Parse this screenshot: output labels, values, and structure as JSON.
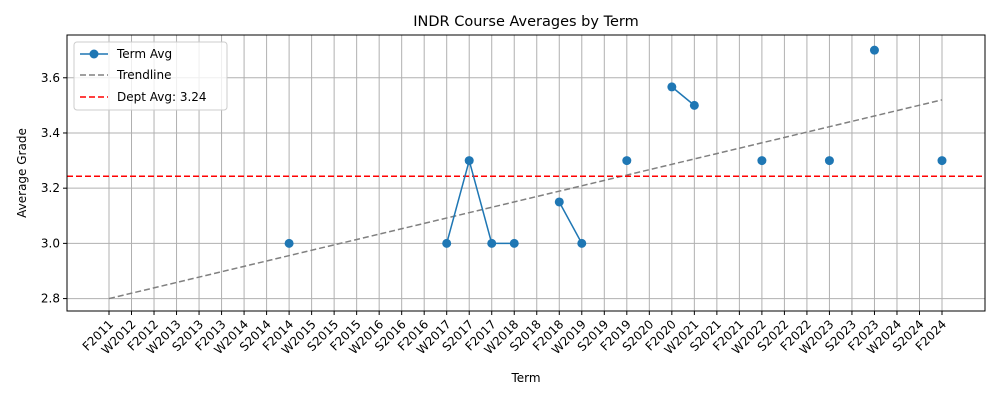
{
  "chart_data": {
    "type": "line",
    "title": "INDR Course Averages by Term",
    "xlabel": "Term",
    "ylabel": "Average Grade",
    "categories": [
      "F2011",
      "W2012",
      "F2012",
      "W2013",
      "S2013",
      "F2013",
      "W2014",
      "S2014",
      "F2014",
      "W2015",
      "S2015",
      "F2015",
      "W2016",
      "S2016",
      "F2016",
      "W2017",
      "S2017",
      "F2017",
      "W2018",
      "S2018",
      "F2018",
      "W2019",
      "S2019",
      "F2019",
      "S2020",
      "F2020",
      "W2021",
      "S2021",
      "F2021",
      "W2022",
      "S2022",
      "F2022",
      "W2023",
      "S2023",
      "F2023",
      "W2024",
      "S2024",
      "F2024"
    ],
    "ylim": [
      2.755,
      3.755
    ],
    "yticks": [
      2.8,
      3.0,
      3.2,
      3.4,
      3.6
    ],
    "ytick_labels": [
      "2.8",
      "3.0",
      "3.2",
      "3.4",
      "3.6"
    ],
    "grid": true,
    "legend_position": "top-left",
    "series": [
      {
        "name": "Term Avg",
        "color": "#1f77b4",
        "values": [
          null,
          null,
          null,
          null,
          null,
          null,
          null,
          null,
          3.0,
          null,
          null,
          null,
          null,
          null,
          null,
          3.0,
          3.3,
          3.0,
          3.0,
          null,
          3.15,
          3.0,
          null,
          3.3,
          null,
          3.567,
          3.5,
          null,
          null,
          3.3,
          null,
          null,
          3.3,
          null,
          3.7,
          null,
          null,
          3.3
        ]
      },
      {
        "name": "Trendline",
        "color": "#808080",
        "style": "dashed",
        "values_endpoints": [
          2.8,
          3.52
        ]
      },
      {
        "name": "Dept Avg: 3.24",
        "color": "#ff0000",
        "style": "dashed",
        "value": 3.243
      }
    ]
  }
}
